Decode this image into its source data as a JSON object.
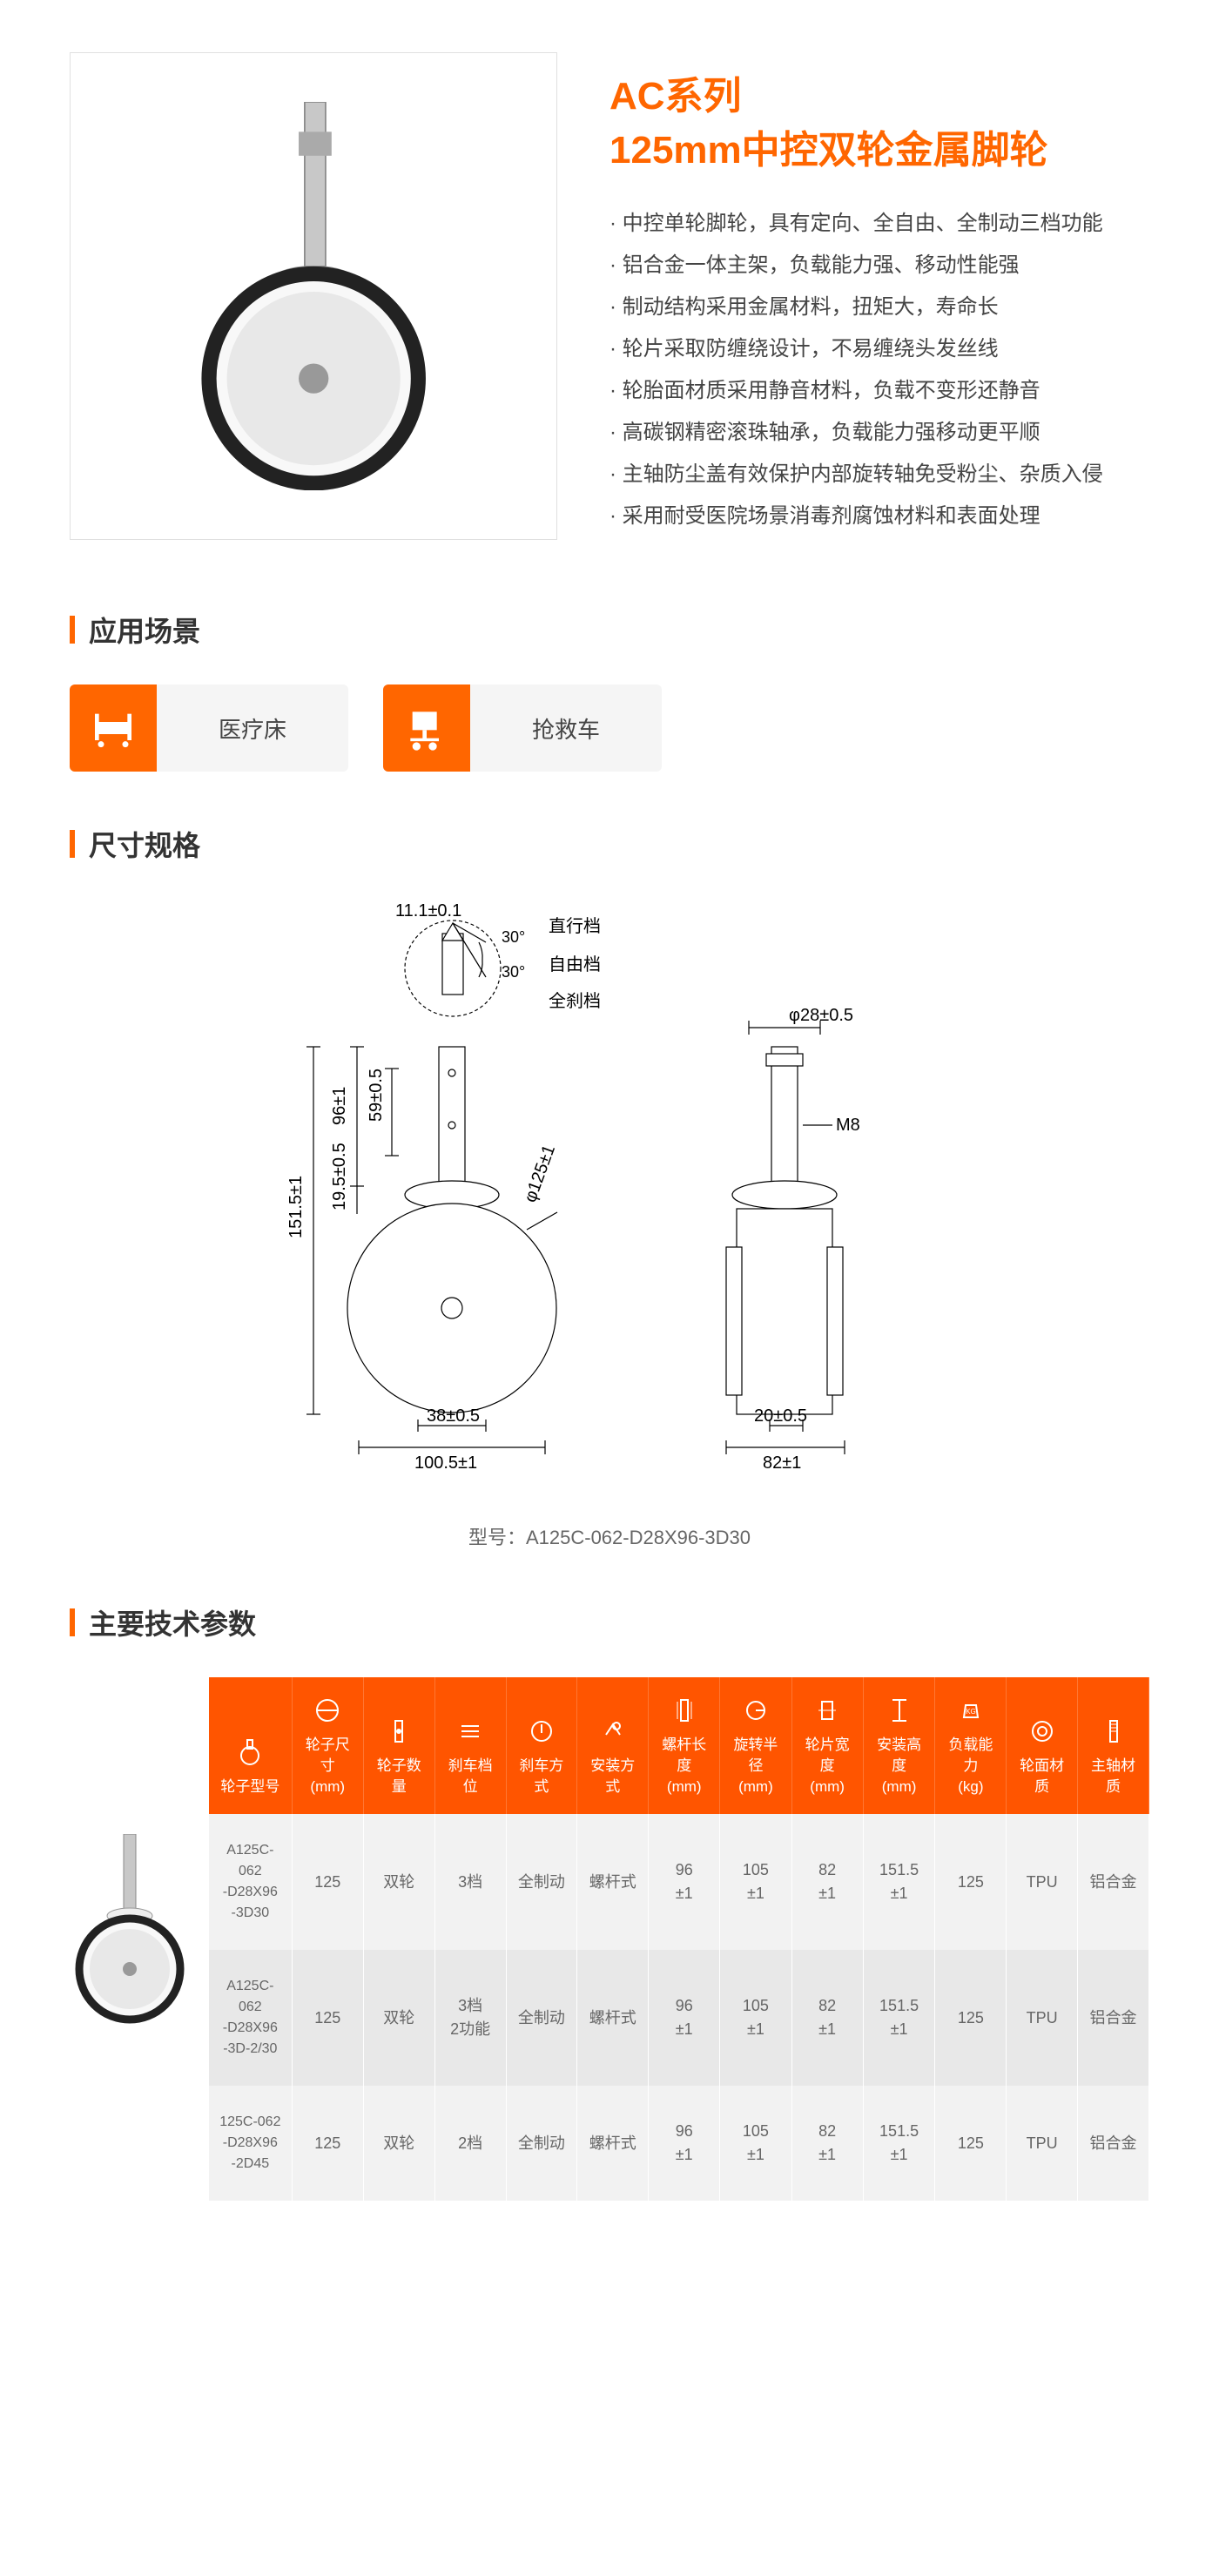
{
  "title_line1": "AC系列",
  "title_line2": "125mm中控双轮金属脚轮",
  "features": [
    "中控单轮脚轮，具有定向、全自由、全制动三档功能",
    "铝合金一体主架，负载能力强、移动性能强",
    "制动结构采用金属材料，扭矩大，寿命长",
    "轮片采取防缠绕设计，不易缠绕头发丝线",
    "轮胎面材质采用静音材料，负载不变形还静音",
    "高碳钢精密滚珠轴承，负载能力强移动更平顺",
    "主轴防尘盖有效保护内部旋转轴免受粉尘、杂质入侵",
    "采用耐受医院场景消毒剂腐蚀材料和表面处理"
  ],
  "sec_scenes": "应用场景",
  "scenes": [
    {
      "icon": "bed",
      "label": "医疗床"
    },
    {
      "icon": "cart",
      "label": "抢救车"
    }
  ],
  "sec_dim": "尺寸规格",
  "dim": {
    "labels": {
      "top": "11.1±0.1",
      "angle": "30°",
      "d1": "直行档",
      "d2": "自由档",
      "d3": "全刹档",
      "h1": "96±1",
      "h2": "59±0.5",
      "h3": "151.5±1",
      "h4": "19.5±0.5",
      "dia": "φ125±1",
      "w1": "38±0.5",
      "w2": "100.5±1",
      "top2": "φ28±0.5",
      "m8": "M8",
      "w3": "20±0.5",
      "w4": "82±1"
    },
    "model": "型号：A125C-062-D28X96-3D30"
  },
  "sec_spec": "主要技术参数",
  "columns": [
    {
      "icon": "wheel",
      "label": "轮子型号"
    },
    {
      "icon": "size",
      "label": "轮子尺寸\n(mm)"
    },
    {
      "icon": "qty",
      "label": "轮子数量"
    },
    {
      "icon": "gear",
      "label": "刹车档位"
    },
    {
      "icon": "brake",
      "label": "刹车方式"
    },
    {
      "icon": "mount",
      "label": "安装方式"
    },
    {
      "icon": "stem",
      "label": "螺杆长度\n(mm)"
    },
    {
      "icon": "radius",
      "label": "旋转半径\n(mm)"
    },
    {
      "icon": "width",
      "label": "轮片宽度\n(mm)"
    },
    {
      "icon": "height",
      "label": "安装高度\n(mm)"
    },
    {
      "icon": "load",
      "label": "负载能力\n(kg)"
    },
    {
      "icon": "tread",
      "label": "轮面材质"
    },
    {
      "icon": "shaft",
      "label": "主轴材质"
    }
  ],
  "rows": [
    [
      "A125C-062\n-D28X96\n-3D30",
      "125",
      "双轮",
      "3档",
      "全制动",
      "螺杆式",
      "96\n±1",
      "105\n±1",
      "82\n±1",
      "151.5\n±1",
      "125",
      "TPU",
      "铝合金"
    ],
    [
      "A125C-062\n-D28X96\n-3D-2/30",
      "125",
      "双轮",
      "3档\n2功能",
      "全制动",
      "螺杆式",
      "96\n±1",
      "105\n±1",
      "82\n±1",
      "151.5\n±1",
      "125",
      "TPU",
      "铝合金"
    ],
    [
      "125C-062\n-D28X96\n-2D45",
      "125",
      "双轮",
      "2档",
      "全制动",
      "螺杆式",
      "96\n±1",
      "105\n±1",
      "82\n±1",
      "151.5\n±1",
      "125",
      "TPU",
      "铝合金"
    ]
  ]
}
